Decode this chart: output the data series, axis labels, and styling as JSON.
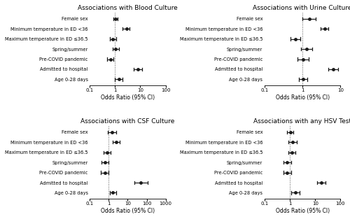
{
  "panels": [
    {
      "title": "Associations with Blood Culture",
      "xlim": [
        0.1,
        100
      ],
      "xticks": [
        0.1,
        1,
        10,
        100
      ],
      "xlabel": "Odds Ratio (95% CI)",
      "categories": [
        "Female sex",
        "Minimum temperature in ED <36",
        "Maximum temperature in ED d36.5",
        "Spring/summer",
        "Pre-COVID pandemic",
        "Admitted to hospital",
        "Age 0-28 days"
      ],
      "or": [
        1.05,
        2.8,
        0.82,
        1.05,
        0.65,
        8.0,
        1.4
      ],
      "ci_low": [
        0.88,
        2.0,
        0.62,
        0.8,
        0.48,
        5.5,
        1.0
      ],
      "ci_high": [
        1.25,
        3.8,
        1.1,
        1.4,
        0.88,
        12.0,
        2.0
      ]
    },
    {
      "title": "Associations with Urine Culture",
      "xlim": [
        0.1,
        10
      ],
      "xticks": [
        0.1,
        1,
        10
      ],
      "xlabel": "Odds Ratio (95% CI)",
      "categories": [
        "Female sex",
        "Minimum temperature in ED <36",
        "Maximum temperature in ED d36.5",
        "Spring/summer",
        "Pre-COVID pandemic",
        "Admitted to hospital",
        "Age 0-28 days"
      ],
      "or": [
        1.5,
        3.8,
        0.65,
        1.3,
        1.05,
        6.5,
        1.05
      ],
      "ci_low": [
        1.0,
        3.0,
        0.48,
        0.9,
        0.75,
        4.8,
        0.8
      ],
      "ci_high": [
        2.2,
        4.8,
        0.88,
        1.8,
        1.45,
        8.8,
        1.35
      ]
    },
    {
      "title": "Associations with CSF Culture",
      "xlim": [
        0.1,
        1000
      ],
      "xticks": [
        0.1,
        1,
        10,
        100,
        1000
      ],
      "xlabel": "Odds Ratio (95% CI)",
      "categories": [
        "Female sex",
        "Minimum temperature in ED <36",
        "Maximum temperature in ED d36.5",
        "Spring/summer",
        "Pre-COVID pandemic",
        "Admitted to hospital",
        "Age 0-28 days"
      ],
      "or": [
        1.5,
        2.5,
        0.82,
        0.65,
        0.62,
        50.0,
        1.6
      ],
      "ci_low": [
        0.9,
        1.6,
        0.55,
        0.42,
        0.38,
        22.0,
        1.1
      ],
      "ci_high": [
        2.5,
        3.8,
        1.2,
        1.0,
        1.0,
        110.0,
        2.4
      ]
    },
    {
      "title": "Associations with any HSV Test",
      "xlim": [
        0.1,
        100
      ],
      "xticks": [
        0.1,
        1,
        10,
        100
      ],
      "xlabel": "Odds Ratio (95% CI)",
      "categories": [
        "Female sex",
        "Minimum temperature in ED <36",
        "Maximum temperature in ED d36.5",
        "Spring/summer",
        "Pre-COVID pandemic",
        "Admitted to hospital",
        "Age 0-28 days"
      ],
      "or": [
        1.05,
        1.3,
        1.2,
        0.78,
        0.78,
        18.0,
        1.6
      ],
      "ci_low": [
        0.78,
        0.88,
        0.88,
        0.55,
        0.55,
        12.0,
        1.1
      ],
      "ci_high": [
        1.4,
        1.9,
        1.65,
        1.1,
        1.1,
        26.0,
        2.4
      ]
    }
  ],
  "marker_color": "#1a1a1a",
  "marker_size": 3.5,
  "line_width": 0.9,
  "ref_line_color": "#555555",
  "ref_line_style": ":",
  "bg_color": "white",
  "label_fontsize": 4.8,
  "title_fontsize": 6.5,
  "axis_fontsize": 5.5,
  "tick_fontsize": 5.0
}
